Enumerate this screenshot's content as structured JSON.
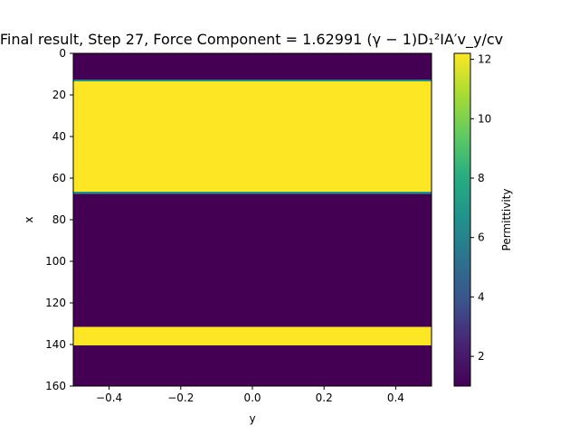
{
  "chart_data": {
    "type": "heatmap",
    "title": "Final result, Step 27, Force Component = 1.62991 (γ − 1)D₁²IA′v_y/cv",
    "xlabel": "y",
    "ylabel": "x",
    "x_range": [
      -0.5,
      0.5
    ],
    "y_range": [
      160,
      0
    ],
    "x_ticks": [
      -0.4,
      -0.2,
      0.0,
      0.2,
      0.4
    ],
    "x_tick_labels": [
      "−0.4",
      "−0.2",
      "0.0",
      "0.2",
      "0.4"
    ],
    "y_ticks": [
      0,
      20,
      40,
      60,
      80,
      100,
      120,
      140,
      160
    ],
    "y_tick_labels": [
      "0",
      "20",
      "40",
      "60",
      "80",
      "100",
      "120",
      "140",
      "160"
    ],
    "colormap": "viridis",
    "value_range": [
      1.0,
      12.2
    ],
    "bands": [
      {
        "x_start": 0,
        "x_end": 12.5,
        "value": 1.0
      },
      {
        "x_start": 12.5,
        "x_end": 13.5,
        "value": 6.6
      },
      {
        "x_start": 13.5,
        "x_end": 66.5,
        "value": 12.2
      },
      {
        "x_start": 66.5,
        "x_end": 67.5,
        "value": 6.6
      },
      {
        "x_start": 67.5,
        "x_end": 131.5,
        "value": 1.0
      },
      {
        "x_start": 131.5,
        "x_end": 140.5,
        "value": 12.2
      },
      {
        "x_start": 140.5,
        "x_end": 160,
        "value": 1.0
      }
    ],
    "colorbar": {
      "label": "Permittivity",
      "ticks": [
        2,
        4,
        6,
        8,
        10,
        12
      ],
      "tick_labels": [
        "2",
        "4",
        "6",
        "8",
        "10",
        "12"
      ]
    },
    "grid": false
  }
}
